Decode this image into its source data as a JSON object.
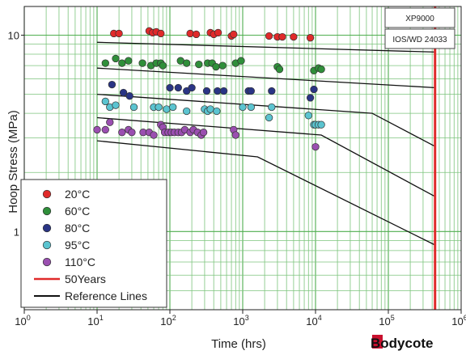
{
  "chart_data": {
    "type": "scatter",
    "xscale": "log",
    "yscale": "log",
    "xlim": [
      1,
      1000000
    ],
    "ylim": [
      0.4,
      14
    ],
    "xlabel": "Time (hrs)",
    "ylabel": "Hoop Stress (MPa)",
    "x_tick_labels": [
      {
        "base": "10",
        "exp": "0"
      },
      {
        "base": "10",
        "exp": "1"
      },
      {
        "base": "10",
        "exp": "2"
      },
      {
        "base": "10",
        "exp": "3"
      },
      {
        "base": "10",
        "exp": "4"
      },
      {
        "base": "10",
        "exp": "5"
      },
      {
        "base": "10",
        "exp": "6"
      }
    ],
    "x_tick_values": [
      1,
      10,
      100,
      1000,
      10000,
      100000,
      1000000
    ],
    "y_ticks": [
      {
        "value": 1,
        "label": "1"
      },
      {
        "value": 10,
        "label": "10"
      }
    ],
    "grid": true,
    "legend_position": "bottom-left",
    "spec_boxes": [
      "XP9000",
      "IOS/WD 24033"
    ],
    "series": [
      {
        "name": "20°C",
        "color": "#e02a2a",
        "points": [
          [
            17,
            10.2
          ],
          [
            20,
            10.2
          ],
          [
            52,
            10.5
          ],
          [
            58,
            10.3
          ],
          [
            65,
            10.4
          ],
          [
            75,
            10.2
          ],
          [
            190,
            10.2
          ],
          [
            230,
            10.1
          ],
          [
            360,
            10.3
          ],
          [
            400,
            10.1
          ],
          [
            460,
            10.3
          ],
          [
            700,
            9.9
          ],
          [
            750,
            10.1
          ],
          [
            2300,
            9.9
          ],
          [
            3000,
            9.8
          ],
          [
            3500,
            9.8
          ],
          [
            5000,
            9.8
          ],
          [
            8500,
            9.7
          ]
        ]
      },
      {
        "name": "60°C",
        "color": "#2f8f3a",
        "points": [
          [
            13,
            7.2
          ],
          [
            18,
            7.6
          ],
          [
            22,
            7.2
          ],
          [
            27,
            7.4
          ],
          [
            42,
            7.2
          ],
          [
            55,
            7.0
          ],
          [
            65,
            7.2
          ],
          [
            75,
            7.2
          ],
          [
            80,
            7.0
          ],
          [
            140,
            7.4
          ],
          [
            170,
            7.2
          ],
          [
            250,
            7.1
          ],
          [
            330,
            7.2
          ],
          [
            380,
            7.2
          ],
          [
            430,
            6.9
          ],
          [
            530,
            7.0
          ],
          [
            800,
            7.2
          ],
          [
            950,
            7.4
          ],
          [
            3000,
            6.9
          ],
          [
            3200,
            6.7
          ],
          [
            9500,
            6.6
          ],
          [
            11000,
            6.8
          ],
          [
            12000,
            6.7
          ]
        ]
      },
      {
        "name": "80°C",
        "color": "#2a3585",
        "points": [
          [
            16,
            5.6
          ],
          [
            23,
            5.1
          ],
          [
            28,
            4.9
          ],
          [
            100,
            5.4
          ],
          [
            130,
            5.4
          ],
          [
            170,
            5.2
          ],
          [
            200,
            5.4
          ],
          [
            320,
            5.2
          ],
          [
            450,
            5.2
          ],
          [
            550,
            5.2
          ],
          [
            1200,
            5.2
          ],
          [
            1300,
            5.2
          ],
          [
            2500,
            5.2
          ],
          [
            8500,
            4.8
          ],
          [
            9500,
            5.3
          ]
        ]
      },
      {
        "name": "95°C",
        "color": "#5bc4d0",
        "points": [
          [
            13,
            4.6
          ],
          [
            15,
            4.3
          ],
          [
            18,
            4.4
          ],
          [
            32,
            4.3
          ],
          [
            60,
            4.3
          ],
          [
            70,
            4.3
          ],
          [
            90,
            4.2
          ],
          [
            110,
            4.3
          ],
          [
            170,
            4.1
          ],
          [
            300,
            4.2
          ],
          [
            330,
            4.1
          ],
          [
            360,
            4.2
          ],
          [
            440,
            4.1
          ],
          [
            1000,
            4.3
          ],
          [
            1300,
            4.3
          ],
          [
            2300,
            3.8
          ],
          [
            2500,
            4.3
          ],
          [
            8000,
            3.9
          ],
          [
            9500,
            3.5
          ],
          [
            10000,
            3.5
          ],
          [
            11000,
            3.5
          ],
          [
            12000,
            3.5
          ]
        ]
      },
      {
        "name": "110°C",
        "color": "#9a4fb0",
        "points": [
          [
            10,
            3.3
          ],
          [
            13,
            3.3
          ],
          [
            15,
            3.6
          ],
          [
            22,
            3.2
          ],
          [
            27,
            3.3
          ],
          [
            30,
            3.2
          ],
          [
            43,
            3.2
          ],
          [
            52,
            3.2
          ],
          [
            60,
            3.1
          ],
          [
            75,
            3.5
          ],
          [
            80,
            3.4
          ],
          [
            85,
            3.2
          ],
          [
            95,
            3.2
          ],
          [
            105,
            3.2
          ],
          [
            115,
            3.2
          ],
          [
            130,
            3.2
          ],
          [
            145,
            3.2
          ],
          [
            160,
            3.3
          ],
          [
            190,
            3.2
          ],
          [
            210,
            3.3
          ],
          [
            240,
            3.2
          ],
          [
            270,
            3.1
          ],
          [
            290,
            3.2
          ],
          [
            750,
            3.3
          ],
          [
            800,
            3.1
          ],
          [
            10000,
            2.7
          ]
        ]
      }
    ],
    "fifty_years": {
      "name": "50Years",
      "x": 438000,
      "color": "#e02a2a"
    },
    "reference_lines": {
      "name": "Reference Lines",
      "color": "#111111",
      "lines": [
        [
          [
            10,
            9.2
          ],
          [
            450000,
            8.2
          ]
        ],
        [
          [
            10,
            6.8
          ],
          [
            450000,
            5.4
          ]
        ],
        [
          [
            10,
            5.0
          ],
          [
            60000,
            4.0
          ],
          [
            450000,
            2.7
          ]
        ],
        [
          [
            10,
            3.8
          ],
          [
            12000,
            3.1
          ],
          [
            450000,
            1.5
          ]
        ],
        [
          [
            10,
            2.9
          ],
          [
            1600,
            2.4
          ],
          [
            450000,
            0.85
          ]
        ]
      ]
    }
  },
  "logo": {
    "text": "Bodycote"
  }
}
